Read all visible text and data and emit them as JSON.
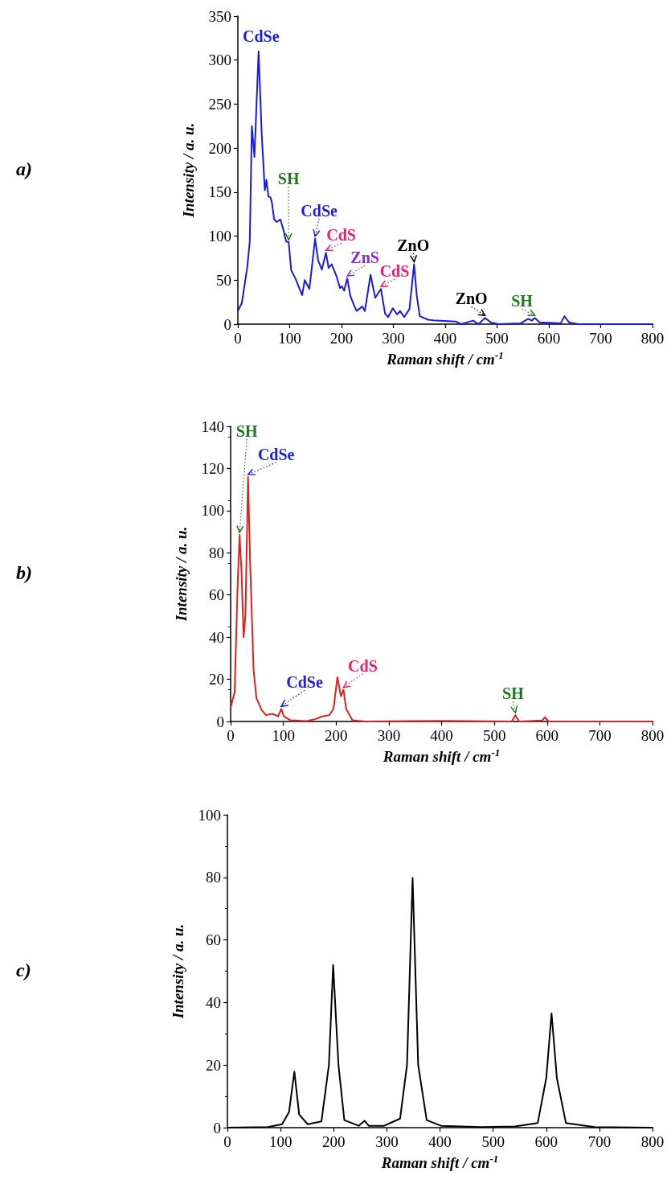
{
  "chart_data": [
    {
      "type": "line",
      "xlabel": "Raman shift / cm$^{-1}$",
      "ylabel": "Intensity / a. u.",
      "xlim": [
        0,
        800
      ],
      "xticks": [
        0,
        100,
        200,
        300,
        400,
        500,
        600,
        700,
        800
      ],
      "ylim": [
        0,
        350
      ],
      "yticks": [
        0,
        50,
        100,
        150,
        200,
        250,
        300,
        350
      ],
      "grid": false,
      "marker": "none",
      "line_style": "solid",
      "series": [
        {
          "color": "#1a1ae0",
          "x": [
            0,
            7.7,
            18,
            23,
            27,
            32,
            40,
            46,
            52,
            55,
            59,
            63,
            66,
            70,
            75,
            82,
            88,
            93,
            98,
            103,
            111,
            119,
            124,
            129,
            138,
            149,
            155,
            162,
            170,
            175,
            181,
            190,
            197,
            201,
            205,
            211,
            217,
            223,
            229,
            240,
            245,
            256,
            265,
            276,
            284,
            290,
            299,
            307,
            313,
            321,
            331,
            340,
            345,
            351,
            367,
            382,
            420,
            431,
            454,
            464,
            477,
            488,
            502,
            546,
            560,
            567,
            573,
            582,
            623,
            630,
            639,
            656,
            800
          ],
          "values": [
            15,
            24,
            64,
            94,
            225,
            190,
            310,
            216,
            152,
            164,
            145,
            144,
            137,
            119,
            116,
            119,
            107,
            94,
            93,
            61,
            52,
            40,
            33,
            50,
            40,
            97,
            72,
            62,
            81,
            64,
            68,
            55,
            41,
            43,
            38,
            52,
            32,
            23,
            15,
            20,
            15,
            56,
            30,
            40,
            12,
            8,
            18,
            11,
            15,
            8,
            17,
            68,
            33,
            9,
            5,
            4,
            3,
            0,
            4,
            0,
            7,
            2,
            0,
            1,
            6,
            4,
            7,
            2,
            1,
            9,
            2,
            0,
            0
          ]
        }
      ],
      "annotations": [
        "a)",
        {
          "text": "CdSe",
          "x": 40,
          "y": 310
        },
        {
          "text": "SH",
          "x": 98,
          "y": 93
        },
        {
          "text": "CdSe",
          "x": 149,
          "y": 97
        },
        {
          "text": "CdS",
          "x": 170,
          "y": 81
        },
        {
          "text": "ZnS",
          "x": 211,
          "y": 52
        },
        {
          "text": "CdS",
          "x": 276,
          "y": 40
        },
        {
          "text": "ZnO",
          "x": 340,
          "y": 68
        },
        {
          "text": "ZnO",
          "x": 477,
          "y": 7
        },
        {
          "text": "SH",
          "x": 573,
          "y": 7
        }
      ]
    },
    {
      "type": "line",
      "xlabel": "Raman shift / cm$^{-1}$",
      "ylabel": "Intensity / a. u.",
      "xlim": [
        0,
        800
      ],
      "xticks": [
        0,
        100,
        200,
        300,
        400,
        500,
        600,
        700,
        800
      ],
      "ylim": [
        0,
        140
      ],
      "yticks": [
        0,
        20,
        40,
        60,
        80,
        100,
        120,
        140
      ],
      "grid": false,
      "marker": "none",
      "line_style": "solid",
      "series": [
        {
          "color": "#e02020",
          "x": [
            0,
            7.7,
            13,
            17,
            20.5,
            24.6,
            28,
            33,
            37,
            43.6,
            49,
            59,
            67,
            79.5,
            85,
            90,
            96,
            101,
            113,
            144,
            161.5,
            174,
            187,
            195,
            202.5,
            209,
            214,
            219,
            231,
            256,
            403,
            533,
            540,
            547,
            591,
            596,
            603,
            800
          ],
          "values": [
            6.6,
            14,
            63,
            88.5,
            72,
            40,
            50,
            116,
            75,
            24,
            11,
            5.4,
            3,
            3.6,
            3,
            2.4,
            6,
            2.4,
            0.6,
            0.2,
            1.2,
            2.4,
            3,
            6,
            21,
            12,
            15,
            6,
            0.6,
            0,
            0.3,
            0,
            3,
            0,
            0.5,
            2,
            0,
            0
          ]
        }
      ],
      "annotations": [
        "b)",
        {
          "text": "SH",
          "x": 17,
          "y": 88.5
        },
        {
          "text": "CdSe",
          "x": 33,
          "y": 116
        },
        {
          "text": "CdSe",
          "x": 96,
          "y": 6
        },
        {
          "text": "CdS",
          "x": 214,
          "y": 15
        },
        {
          "text": "SH",
          "x": 540,
          "y": 3
        }
      ]
    },
    {
      "type": "line",
      "xlabel": "Raman shift / cm$^{-1}$",
      "ylabel": "Intensity / a. u.",
      "xlim": [
        0,
        800
      ],
      "xticks": [
        0,
        100,
        200,
        300,
        400,
        500,
        600,
        700,
        800
      ],
      "ylim": [
        0,
        100
      ],
      "yticks": [
        0,
        20,
        40,
        60,
        80,
        100
      ],
      "grid": false,
      "marker": "none",
      "line_style": "solid",
      "series": [
        {
          "color": "#000000",
          "x": [
            0,
            76,
            103,
            116,
            126,
            135,
            151,
            177,
            191,
            199,
            209,
            220,
            247,
            258,
            266,
            295,
            325,
            338,
            348.5,
            359,
            375,
            402,
            477,
            541,
            584,
            600,
            610,
            620,
            637,
            691,
            800
          ],
          "values": [
            0,
            0.2,
            1.1,
            5,
            17.9,
            4.2,
            1.1,
            2,
            20,
            52,
            20,
            2.4,
            0.6,
            2.2,
            0.6,
            0.6,
            2.9,
            20,
            79.8,
            20,
            2.4,
            0.6,
            0.2,
            0.4,
            1.5,
            15.8,
            36.5,
            15.8,
            1.5,
            0.2,
            0
          ]
        }
      ],
      "annotations": [
        "c)"
      ]
    }
  ]
}
